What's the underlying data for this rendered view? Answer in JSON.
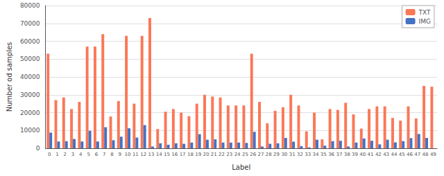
{
  "chart_data": {
    "type": "bar",
    "xlabel": "Label",
    "ylabel": "Number od samples",
    "categories": [
      0,
      1,
      2,
      3,
      4,
      5,
      6,
      7,
      8,
      9,
      10,
      11,
      12,
      13,
      14,
      15,
      16,
      17,
      18,
      19,
      20,
      21,
      22,
      23,
      24,
      25,
      26,
      27,
      28,
      29,
      30,
      31,
      32,
      33,
      34,
      35,
      36,
      37,
      38,
      39,
      40,
      41,
      42,
      43,
      44,
      45,
      46,
      47,
      48,
      49
    ],
    "series": [
      {
        "name": "TXT",
        "color": "#FA7857",
        "values": [
          53000,
          27000,
          28500,
          22000,
          26000,
          57000,
          57000,
          64000,
          17800,
          26500,
          63000,
          25000,
          63000,
          73000,
          10800,
          20500,
          22000,
          20000,
          18000,
          25000,
          30000,
          29000,
          28500,
          24000,
          24000,
          24000,
          53000,
          26000,
          14000,
          21000,
          23000,
          30000,
          24000,
          9500,
          20000,
          5000,
          22000,
          21500,
          25500,
          19000,
          11000,
          22000,
          23500,
          23500,
          17000,
          15500,
          23500,
          16700,
          35000,
          34500
        ]
      },
      {
        "name": "IMG",
        "color": "#4472C4",
        "values": [
          8800,
          3800,
          4000,
          5200,
          3800,
          9800,
          3800,
          11800,
          4500,
          6500,
          11200,
          6000,
          13000,
          1000,
          2800,
          2000,
          2800,
          2500,
          3200,
          7900,
          4800,
          5000,
          3200,
          3200,
          3200,
          3000,
          9200,
          1000,
          2500,
          2800,
          5800,
          3700,
          1200,
          500,
          4800,
          1500,
          4000,
          4200,
          1000,
          3200,
          5500,
          4200,
          2200,
          4800,
          3300,
          4000,
          5700,
          8000,
          5800,
          0
        ]
      }
    ],
    "ylim": [
      0,
      80000
    ],
    "yticks": [
      0,
      10000,
      20000,
      30000,
      40000,
      50000,
      60000,
      70000,
      80000
    ],
    "grid": true,
    "legend": "upper right"
  }
}
